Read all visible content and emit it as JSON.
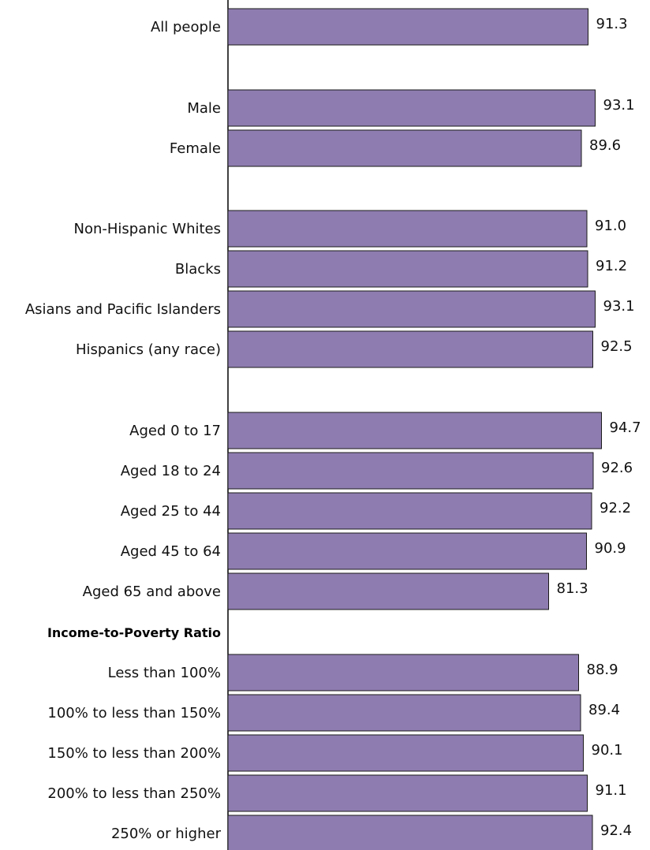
{
  "chart_data": {
    "type": "bar",
    "orientation": "horizontal",
    "bar_color": "#8e7cb0",
    "grid": false,
    "subheadings": [
      {
        "text": "Income-to-Poverty Ratio",
        "before_index": 12
      }
    ],
    "categories": [
      "All people",
      "Male",
      "Female",
      "Non-Hispanic Whites",
      "Blacks",
      "Asians and Pacific Islanders",
      "Hispanics (any race)",
      "Aged 0 to 17",
      "Aged 18 to 24",
      "Aged 25 to 44",
      "Aged 45 to 64",
      "Aged 65 and above",
      "Less than 100%",
      "100% to less than 150%",
      "150% to less than 200%",
      "200% to less than 250%",
      "250% or higher"
    ],
    "values": [
      91.3,
      93.1,
      89.6,
      91.0,
      91.2,
      93.1,
      92.5,
      94.7,
      92.6,
      92.2,
      90.9,
      81.3,
      88.9,
      89.4,
      90.1,
      91.1,
      92.4
    ],
    "value_labels": [
      "91.3",
      "93.1",
      "89.6",
      "91.0",
      "91.2",
      "93.1",
      "92.5",
      "94.7",
      "92.6",
      "92.2",
      "90.9",
      "81.3",
      "88.9",
      "89.4",
      "90.1",
      "91.1",
      "92.4"
    ]
  }
}
